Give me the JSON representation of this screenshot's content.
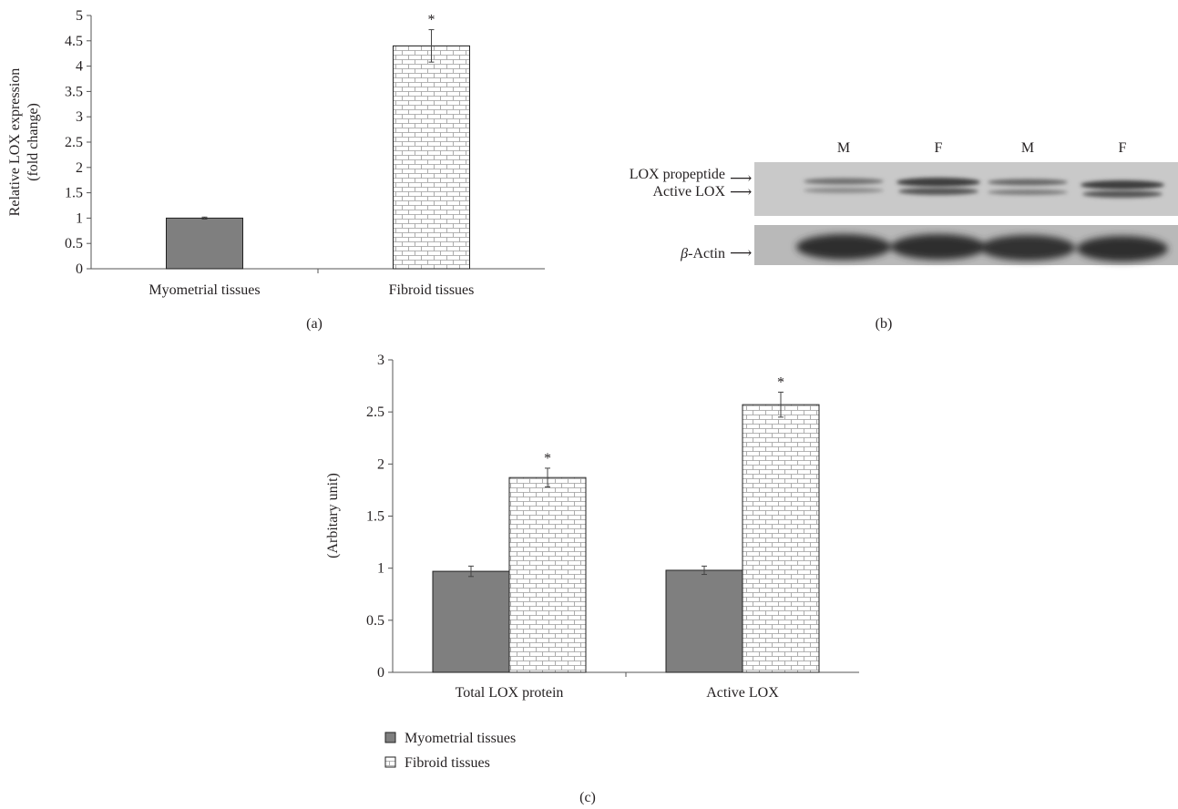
{
  "colors": {
    "myometrial_fill": "#7f7f7f",
    "fibroid_fill": "#ffffff",
    "brick_line": "#9a9a9a",
    "axis": "#555555",
    "text": "#231f20"
  },
  "panels": {
    "a": {
      "caption": "(a)"
    },
    "b": {
      "caption": "(b)",
      "lanes": [
        "M",
        "F",
        "M",
        "F"
      ],
      "band_labels": {
        "propeptide": "LOX propeptide",
        "active": "Active LOX",
        "actin_symbol": "β",
        "actin_name": "-Actin"
      },
      "arrow_glyph": "⟶"
    },
    "c": {
      "caption": "(c)"
    }
  },
  "chart_data": [
    {
      "type": "bar",
      "panel": "a",
      "categories": [
        "Myometrial tissues",
        "Fibroid tissues"
      ],
      "series": [
        {
          "values": [
            1.0,
            4.4
          ],
          "errors": [
            0.02,
            0.32
          ],
          "fills": [
            "myometrial",
            "fibroid"
          ]
        }
      ],
      "ylabel": [
        "Relative LOX expression",
        "(fold change)"
      ],
      "ylim": [
        0,
        5
      ],
      "yticks": [
        0,
        0.5,
        1,
        1.5,
        2,
        2.5,
        3,
        3.5,
        4,
        4.5,
        5
      ],
      "ytick_labels": [
        "0",
        "0.5",
        "1",
        "1.5",
        "2",
        "2.5",
        "3",
        "3.5",
        "4",
        "4.5",
        "5"
      ],
      "significance": [
        false,
        true
      ],
      "significance_mark": "*",
      "grid": false
    },
    {
      "type": "bar",
      "panel": "c",
      "categories": [
        "Total LOX protein",
        "Active LOX"
      ],
      "series": [
        {
          "name": "Myometrial tissues",
          "fill": "myometrial",
          "values": [
            0.97,
            0.98
          ],
          "errors": [
            0.05,
            0.04
          ]
        },
        {
          "name": "Fibroid tissues",
          "fill": "fibroid",
          "values": [
            1.87,
            2.57
          ],
          "errors": [
            0.09,
            0.12
          ]
        }
      ],
      "ylabel": "(Arbitary unit)",
      "ylim": [
        0,
        3
      ],
      "yticks": [
        0,
        0.5,
        1,
        1.5,
        2,
        2.5,
        3
      ],
      "ytick_labels": [
        "0",
        "0.5",
        "1",
        "1.5",
        "2",
        "2.5",
        "3"
      ],
      "significance_mark": "*",
      "legend_position": "bottom-left",
      "grid": false
    }
  ]
}
